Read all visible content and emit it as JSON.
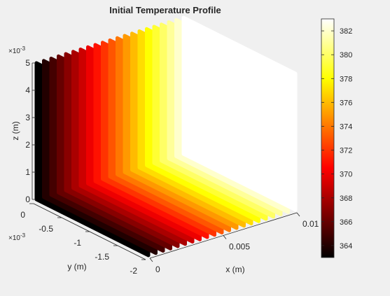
{
  "chart_data": {
    "type": "scatter3",
    "title": "Initial Temperature Profile",
    "colormap": "hot",
    "axes": {
      "x": {
        "label": "x (m)",
        "ticks": [
          0,
          0.005,
          0.01
        ],
        "tick_labels": [
          "0",
          "0.005",
          "0.01"
        ],
        "range": [
          0,
          0.01
        ],
        "exponent_label": ""
      },
      "y": {
        "label": "y (m)",
        "ticks": [
          0,
          -0.0005,
          -0.001,
          -0.0015,
          -0.002
        ],
        "tick_labels": [
          "0",
          "-0.5",
          "-1",
          "-1.5",
          "-2"
        ],
        "range": [
          -0.002,
          0
        ],
        "exponent_label": "×10",
        "exponent_power": "-3"
      },
      "z": {
        "label": "z (m)",
        "ticks": [
          0,
          0.001,
          0.002,
          0.003,
          0.004,
          0.005
        ],
        "tick_labels": [
          "0",
          "1",
          "2",
          "3",
          "4",
          "5"
        ],
        "range": [
          0,
          0.005
        ],
        "exponent_label": "×10",
        "exponent_power": "-3"
      }
    },
    "colorbar": {
      "ticks": [
        364,
        366,
        368,
        370,
        372,
        374,
        376,
        378,
        380,
        382
      ],
      "tick_labels": [
        "364",
        "366",
        "368",
        "370",
        "372",
        "374",
        "376",
        "378",
        "380",
        "382"
      ],
      "range": [
        363,
        383
      ]
    },
    "temperature_by_x": [
      {
        "x": 0.0,
        "T": 363
      },
      {
        "x": 0.0005,
        "T": 364
      },
      {
        "x": 0.001,
        "T": 365
      },
      {
        "x": 0.0015,
        "T": 366
      },
      {
        "x": 0.002,
        "T": 367
      },
      {
        "x": 0.0025,
        "T": 368
      },
      {
        "x": 0.003,
        "T": 369
      },
      {
        "x": 0.0035,
        "T": 370
      },
      {
        "x": 0.004,
        "T": 371
      },
      {
        "x": 0.0045,
        "T": 372
      },
      {
        "x": 0.005,
        "T": 373
      },
      {
        "x": 0.0055,
        "T": 374
      },
      {
        "x": 0.006,
        "T": 375
      },
      {
        "x": 0.0065,
        "T": 376
      },
      {
        "x": 0.007,
        "T": 377
      },
      {
        "x": 0.0075,
        "T": 378
      },
      {
        "x": 0.008,
        "T": 379
      },
      {
        "x": 0.0085,
        "T": 380
      },
      {
        "x": 0.009,
        "T": 381
      },
      {
        "x": 0.0095,
        "T": 382
      },
      {
        "x": 0.01,
        "T": 383
      }
    ]
  }
}
